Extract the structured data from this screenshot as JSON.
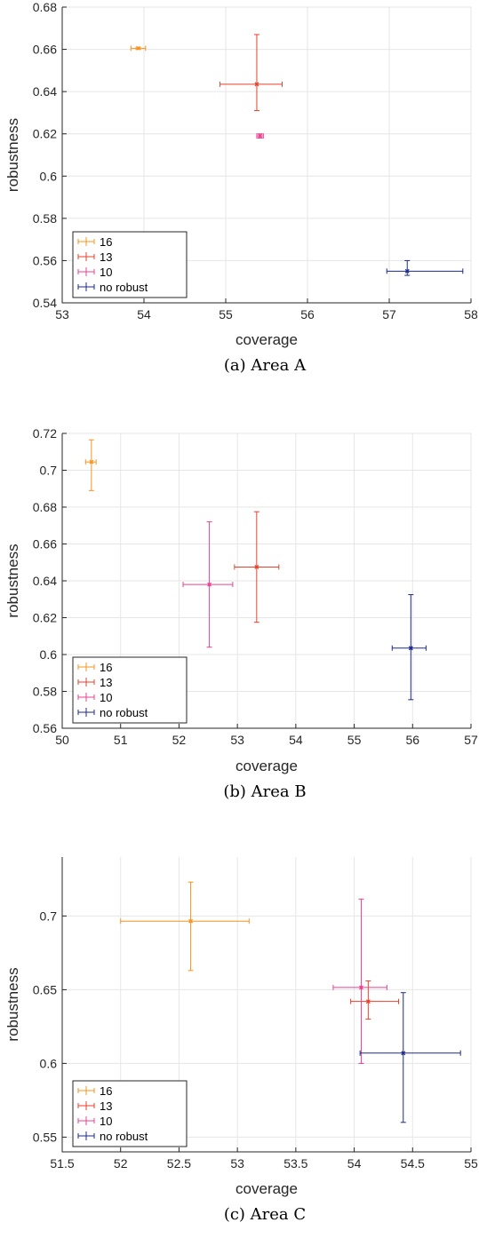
{
  "chart_data": [
    {
      "type": "scatter",
      "caption": "(a) Area A",
      "xlabel": "coverage",
      "ylabel": "robustness",
      "xlim": [
        53,
        58
      ],
      "ylim": [
        0.54,
        0.68
      ],
      "xticks": [
        53,
        54,
        55,
        56,
        57,
        58
      ],
      "xtick_labels": [
        "53",
        "54",
        "55",
        "56",
        "57",
        "58"
      ],
      "yticks": [
        0.54,
        0.56,
        0.58,
        0.6,
        0.62,
        0.64,
        0.66,
        0.68
      ],
      "ytick_labels": [
        "0.54",
        "0.56",
        "0.58",
        "0.6",
        "0.62",
        "0.64",
        "0.66",
        "0.68"
      ],
      "grid": true,
      "legend_position": "bottom-left",
      "series": [
        {
          "name": "16",
          "color": "#f7941d",
          "x": 53.93,
          "y": 0.6605,
          "xerr": [
            0.09,
            0.09
          ],
          "yerr": [
            0.0005,
            0.0005
          ]
        },
        {
          "name": "13",
          "color": "#e8422a",
          "x": 55.38,
          "y": 0.6435,
          "xerr": [
            0.45,
            0.31
          ],
          "yerr": [
            0.0125,
            0.0235
          ]
        },
        {
          "name": "10",
          "color": "#e8428f",
          "x": 55.42,
          "y": 0.619,
          "xerr": [
            0.04,
            0.04
          ],
          "yerr": [
            0.001,
            0.001
          ]
        },
        {
          "name": "no robust",
          "color": "#1c2a8a",
          "x": 57.22,
          "y": 0.555,
          "xerr": [
            0.25,
            0.68
          ],
          "yerr": [
            0.002,
            0.005
          ]
        }
      ]
    },
    {
      "type": "scatter",
      "caption": "(b) Area B",
      "xlabel": "coverage",
      "ylabel": "robustness",
      "xlim": [
        50,
        57
      ],
      "ylim": [
        0.56,
        0.72
      ],
      "xticks": [
        50,
        51,
        52,
        53,
        54,
        55,
        56,
        57
      ],
      "xtick_labels": [
        "50",
        "51",
        "52",
        "53",
        "54",
        "55",
        "56",
        "57"
      ],
      "yticks": [
        0.56,
        0.58,
        0.6,
        0.62,
        0.64,
        0.66,
        0.68,
        0.7,
        0.72
      ],
      "ytick_labels": [
        "0.56",
        "0.58",
        "0.6",
        "0.62",
        "0.64",
        "0.66",
        "0.68",
        "0.7",
        "0.72"
      ],
      "grid": true,
      "legend_position": "bottom-left",
      "series": [
        {
          "name": "16",
          "color": "#f7941d",
          "x": 50.5,
          "y": 0.7045,
          "xerr": [
            0.1,
            0.08
          ],
          "yerr": [
            0.0155,
            0.012
          ]
        },
        {
          "name": "13",
          "color": "#e8422a",
          "x": 53.33,
          "y": 0.6475,
          "xerr": [
            0.38,
            0.38
          ],
          "yerr": [
            0.03,
            0.03
          ]
        },
        {
          "name": "10",
          "color": "#e8428f",
          "x": 52.52,
          "y": 0.638,
          "xerr": [
            0.45,
            0.4
          ],
          "yerr": [
            0.034,
            0.034
          ]
        },
        {
          "name": "no robust",
          "color": "#1c2a8a",
          "x": 55.97,
          "y": 0.6035,
          "xerr": [
            0.32,
            0.26
          ],
          "yerr": [
            0.028,
            0.029
          ]
        }
      ]
    },
    {
      "type": "scatter",
      "caption": "(c) Area C",
      "xlabel": "coverage",
      "ylabel": "robustness",
      "xlim": [
        51.5,
        55
      ],
      "ylim": [
        0.54,
        0.74
      ],
      "xticks": [
        51.5,
        52,
        52.5,
        53,
        53.5,
        54,
        54.5,
        55
      ],
      "xtick_labels": [
        "51.5",
        "52",
        "52.5",
        "53",
        "53.5",
        "54",
        "54.5",
        "55"
      ],
      "yticks": [
        0.55,
        0.6,
        0.65,
        0.7
      ],
      "ytick_labels": [
        "0.55",
        "0.6",
        "0.65",
        "0.7"
      ],
      "grid": true,
      "legend_position": "bottom-left",
      "series": [
        {
          "name": "16",
          "color": "#f7941d",
          "x": 52.6,
          "y": 0.6965,
          "xerr": [
            0.6,
            0.5
          ],
          "yerr": [
            0.0335,
            0.0265
          ]
        },
        {
          "name": "13",
          "color": "#e8422a",
          "x": 54.12,
          "y": 0.642,
          "xerr": [
            0.15,
            0.26
          ],
          "yerr": [
            0.012,
            0.014
          ]
        },
        {
          "name": "10",
          "color": "#e8428f",
          "x": 54.06,
          "y": 0.6515,
          "xerr": [
            0.24,
            0.22
          ],
          "yerr": [
            0.0515,
            0.06
          ]
        },
        {
          "name": "no robust",
          "color": "#1c2a8a",
          "x": 54.42,
          "y": 0.607,
          "xerr": [
            0.37,
            0.49
          ],
          "yerr": [
            0.047,
            0.041
          ]
        }
      ]
    }
  ]
}
